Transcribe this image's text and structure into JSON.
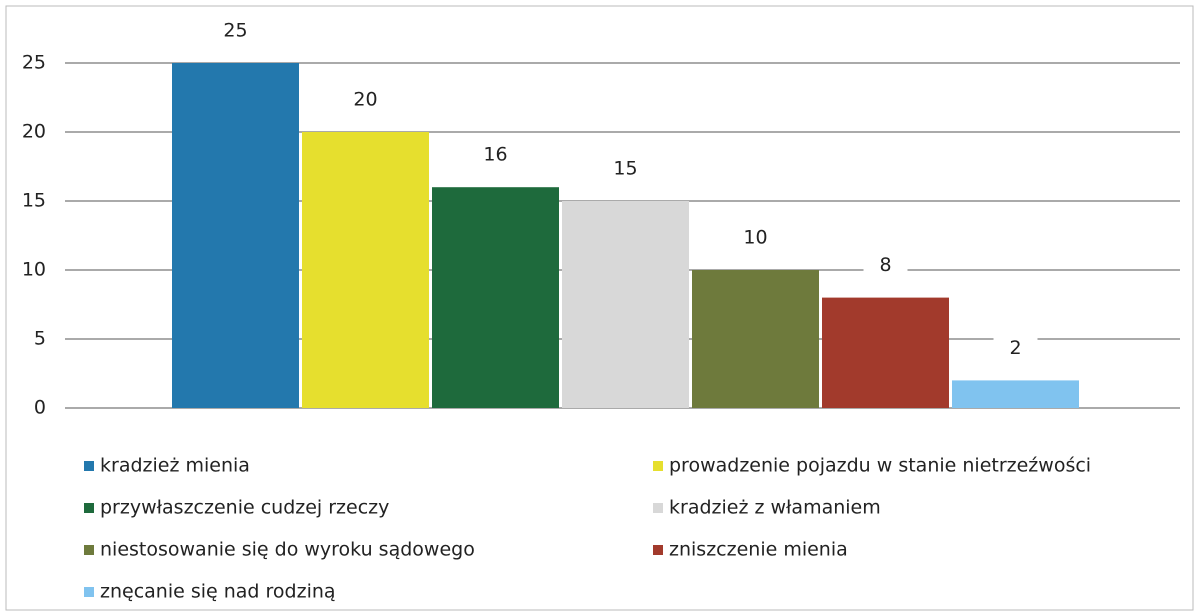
{
  "chart_data": {
    "type": "bar",
    "categories": [
      "kradzież mienia",
      "prowadzenie pojazdu w stanie nietrzeźwości",
      "przywłaszczenie cudzej rzeczy",
      "kradzież z włamaniem",
      "niestosowanie się do wyroku sądowego",
      "zniszczenie mienia",
      "znęcanie się nad rodziną"
    ],
    "values": [
      25,
      20,
      16,
      15,
      10,
      8,
      2
    ],
    "colors": [
      "#2378ad",
      "#e6df2e",
      "#1e6a3c",
      "#d8d8d8",
      "#6e7a3c",
      "#a23a2c",
      "#80c3ef"
    ],
    "ylim": [
      0,
      25
    ],
    "yticks": [
      0,
      5,
      10,
      15,
      20,
      25
    ],
    "grid": true,
    "legend": "bottom"
  }
}
